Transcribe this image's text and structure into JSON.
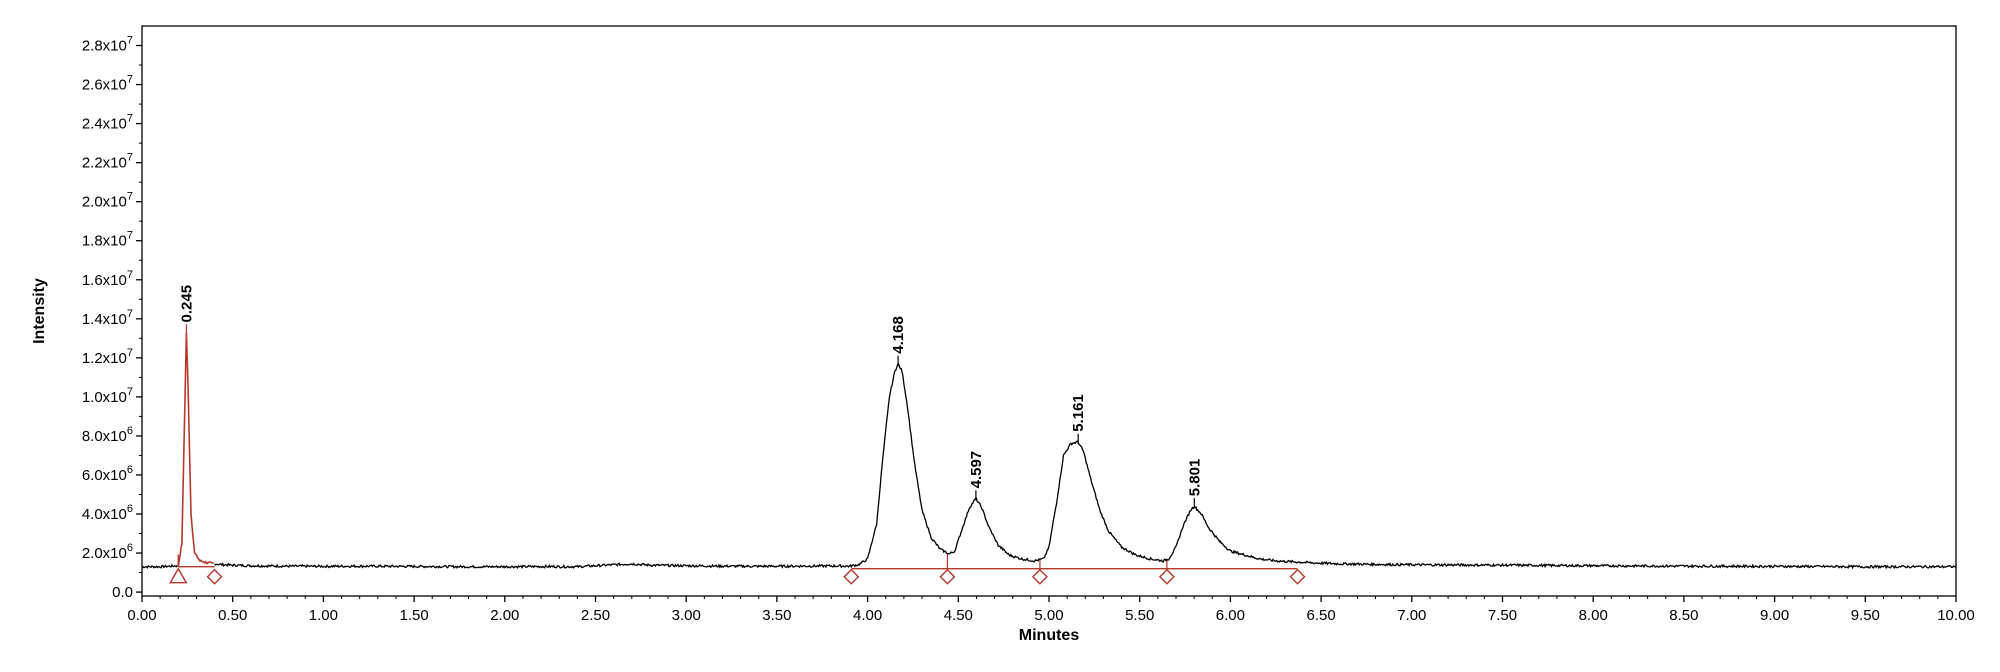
{
  "chart_data": {
    "type": "line",
    "xlabel": "Minutes",
    "ylabel": "Intensity",
    "xlim": [
      0,
      10
    ],
    "ylim": [
      -200000,
      29000000
    ],
    "grid": false,
    "colors": {
      "trace": "#000000",
      "integration": "#b5392a",
      "axis": "#000000"
    },
    "x_ticks": [
      {
        "v": 0.0,
        "label": "0.00"
      },
      {
        "v": 0.5,
        "label": "0.50"
      },
      {
        "v": 1.0,
        "label": "1.00"
      },
      {
        "v": 1.5,
        "label": "1.50"
      },
      {
        "v": 2.0,
        "label": "2.00"
      },
      {
        "v": 2.5,
        "label": "2.50"
      },
      {
        "v": 3.0,
        "label": "3.00"
      },
      {
        "v": 3.5,
        "label": "3.50"
      },
      {
        "v": 4.0,
        "label": "4.00"
      },
      {
        "v": 4.5,
        "label": "4.50"
      },
      {
        "v": 5.0,
        "label": "5.00"
      },
      {
        "v": 5.5,
        "label": "5.50"
      },
      {
        "v": 6.0,
        "label": "6.00"
      },
      {
        "v": 6.5,
        "label": "6.50"
      },
      {
        "v": 7.0,
        "label": "7.00"
      },
      {
        "v": 7.5,
        "label": "7.50"
      },
      {
        "v": 8.0,
        "label": "8.00"
      },
      {
        "v": 8.5,
        "label": "8.50"
      },
      {
        "v": 9.0,
        "label": "9.00"
      },
      {
        "v": 9.5,
        "label": "9.50"
      },
      {
        "v": 10.0,
        "label": "10.00"
      }
    ],
    "y_ticks": [
      {
        "v": 0,
        "mantissa": "0.0",
        "exp": ""
      },
      {
        "v": 2000000,
        "mantissa": "2.0x10",
        "exp": "6"
      },
      {
        "v": 4000000,
        "mantissa": "4.0x10",
        "exp": "6"
      },
      {
        "v": 6000000,
        "mantissa": "6.0x10",
        "exp": "6"
      },
      {
        "v": 8000000,
        "mantissa": "8.0x10",
        "exp": "6"
      },
      {
        "v": 10000000,
        "mantissa": "1.0x10",
        "exp": "7"
      },
      {
        "v": 12000000,
        "mantissa": "1.2x10",
        "exp": "7"
      },
      {
        "v": 14000000,
        "mantissa": "1.4x10",
        "exp": "7"
      },
      {
        "v": 16000000,
        "mantissa": "1.6x10",
        "exp": "7"
      },
      {
        "v": 18000000,
        "mantissa": "1.8x10",
        "exp": "7"
      },
      {
        "v": 20000000,
        "mantissa": "2.0x10",
        "exp": "7"
      },
      {
        "v": 22000000,
        "mantissa": "2.2x10",
        "exp": "7"
      },
      {
        "v": 24000000,
        "mantissa": "2.4x10",
        "exp": "7"
      },
      {
        "v": 26000000,
        "mantissa": "2.6x10",
        "exp": "7"
      },
      {
        "v": 28000000,
        "mantissa": "2.8x10",
        "exp": "7"
      }
    ],
    "baseline": 1300000,
    "peaks": [
      {
        "rt": 0.245,
        "label": "0.245",
        "height": 13300000,
        "integrated": true
      },
      {
        "rt": 4.168,
        "label": "4.168",
        "height": 11700000,
        "integrated": false
      },
      {
        "rt": 4.597,
        "label": "4.597",
        "height": 4800000,
        "integrated": false
      },
      {
        "rt": 5.161,
        "label": "5.161",
        "height": 7700000,
        "integrated": false
      },
      {
        "rt": 5.801,
        "label": "5.801",
        "height": 4400000,
        "integrated": false
      }
    ],
    "series": [
      {
        "x": [
          0.0,
          0.1,
          0.2,
          0.22,
          0.235,
          0.245,
          0.255,
          0.27,
          0.29,
          0.32,
          0.36,
          0.4,
          0.45,
          0.5,
          0.6,
          0.8,
          1.0,
          1.2,
          1.4,
          1.6,
          1.8,
          2.0,
          2.2,
          2.4,
          2.6,
          2.7,
          2.8,
          3.0,
          3.2,
          3.4,
          3.6,
          3.8,
          3.9,
          3.95,
          4.0,
          4.05,
          4.08,
          4.12,
          4.15,
          4.168,
          4.19,
          4.22,
          4.26,
          4.3,
          4.35,
          4.4,
          4.45,
          4.48,
          4.52,
          4.56,
          4.597,
          4.63,
          4.67,
          4.72,
          4.78,
          4.85,
          4.92,
          4.97,
          5.0,
          5.04,
          5.08,
          5.12,
          5.161,
          5.19,
          5.23,
          5.28,
          5.33,
          5.4,
          5.48,
          5.56,
          5.63,
          5.66,
          5.7,
          5.74,
          5.78,
          5.801,
          5.84,
          5.88,
          5.94,
          6.0,
          6.08,
          6.16,
          6.25,
          6.35,
          6.45,
          6.6,
          6.8,
          7.0,
          7.5,
          8.0,
          8.5,
          9.0,
          9.5,
          10.0
        ],
        "y": [
          1300000,
          1300000,
          1350000,
          2500000,
          9000000,
          13300000,
          10000000,
          4000000,
          2000000,
          1600000,
          1500000,
          1450000,
          1400000,
          1380000,
          1350000,
          1330000,
          1320000,
          1330000,
          1320000,
          1310000,
          1300000,
          1300000,
          1310000,
          1300000,
          1400000,
          1450000,
          1380000,
          1350000,
          1330000,
          1320000,
          1330000,
          1340000,
          1330000,
          1400000,
          1700000,
          3500000,
          6500000,
          10000000,
          11300000,
          11700000,
          11300000,
          9500000,
          6500000,
          4200000,
          2800000,
          2200000,
          1950000,
          2100000,
          3200000,
          4300000,
          4800000,
          4300000,
          3300000,
          2400000,
          1900000,
          1700000,
          1600000,
          1700000,
          2300000,
          4500000,
          7000000,
          7600000,
          7700000,
          7200000,
          5800000,
          4200000,
          3100000,
          2300000,
          1900000,
          1700000,
          1600000,
          1700000,
          2300000,
          3400000,
          4200000,
          4400000,
          4000000,
          3300000,
          2600000,
          2100000,
          1900000,
          1700000,
          1600000,
          1550000,
          1500000,
          1450000,
          1420000,
          1400000,
          1380000,
          1350000,
          1330000,
          1320000,
          1300000,
          1300000
        ]
      }
    ],
    "integration_lines": [
      {
        "x1": 0.2,
        "x2": 0.4,
        "y": 1300000
      },
      {
        "x1": 3.91,
        "x2": 6.37,
        "y": 1200000
      }
    ],
    "markers": [
      {
        "x": 0.2,
        "shape": "triangle"
      },
      {
        "x": 0.4,
        "shape": "diamond"
      },
      {
        "x": 3.91,
        "shape": "diamond"
      },
      {
        "x": 4.44,
        "shape": "diamond"
      },
      {
        "x": 4.95,
        "shape": "diamond"
      },
      {
        "x": 5.65,
        "shape": "diamond"
      },
      {
        "x": 6.37,
        "shape": "diamond"
      }
    ],
    "drop_lines": [
      4.44,
      4.95,
      5.65
    ]
  }
}
